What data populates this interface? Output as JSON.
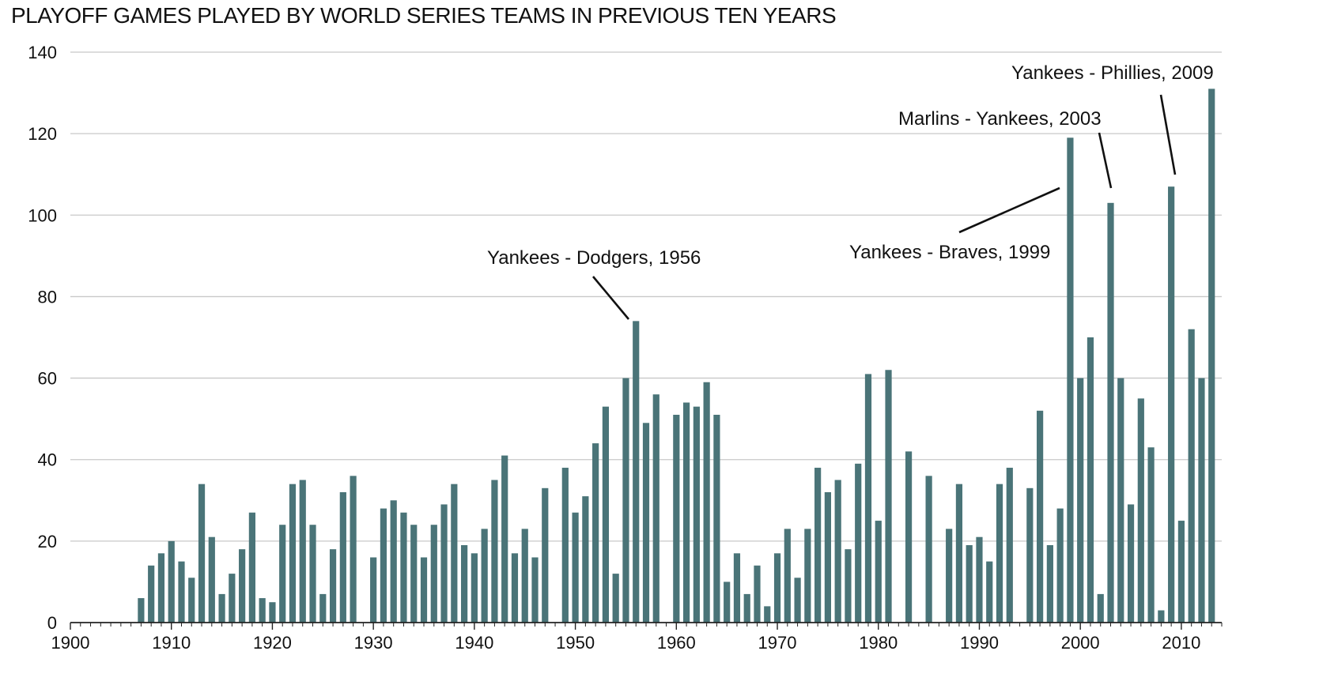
{
  "chart_data": {
    "type": "bar",
    "title": "PLAYOFF GAMES PLAYED BY WORLD SERIES TEAMS IN PREVIOUS TEN YEARS",
    "xlabel": "",
    "ylabel": "",
    "xlim": [
      1900,
      2014
    ],
    "ylim": [
      0,
      140
    ],
    "x_ticks": [
      1900,
      1910,
      1920,
      1930,
      1940,
      1950,
      1960,
      1970,
      1980,
      1990,
      2000,
      2010
    ],
    "y_ticks": [
      0,
      20,
      40,
      60,
      80,
      100,
      120,
      140
    ],
    "grid": "horizontal",
    "bar_color": "#4a7478",
    "x": [
      1907,
      1908,
      1909,
      1910,
      1911,
      1912,
      1913,
      1914,
      1915,
      1916,
      1917,
      1918,
      1919,
      1920,
      1921,
      1922,
      1923,
      1924,
      1925,
      1926,
      1927,
      1928,
      1930,
      1931,
      1932,
      1933,
      1934,
      1935,
      1936,
      1937,
      1938,
      1939,
      1940,
      1941,
      1942,
      1943,
      1944,
      1945,
      1946,
      1947,
      1949,
      1950,
      1951,
      1952,
      1953,
      1954,
      1955,
      1956,
      1957,
      1958,
      1960,
      1961,
      1962,
      1963,
      1964,
      1965,
      1966,
      1967,
      1968,
      1969,
      1970,
      1971,
      1972,
      1973,
      1974,
      1975,
      1976,
      1977,
      1978,
      1979,
      1980,
      1981,
      1983,
      1985,
      1987,
      1988,
      1989,
      1990,
      1991,
      1992,
      1993,
      1995,
      1996,
      1997,
      1998,
      1999,
      2000,
      2001,
      2002,
      2003,
      2004,
      2005,
      2006,
      2007,
      2008,
      2009,
      2010,
      2011,
      2012,
      2013
    ],
    "values": [
      6,
      14,
      17,
      20,
      15,
      11,
      34,
      21,
      7,
      12,
      18,
      27,
      6,
      5,
      24,
      34,
      35,
      24,
      7,
      18,
      32,
      36,
      16,
      28,
      30,
      27,
      24,
      16,
      24,
      29,
      34,
      19,
      17,
      23,
      35,
      41,
      17,
      23,
      16,
      33,
      38,
      27,
      31,
      44,
      53,
      12,
      60,
      74,
      49,
      56,
      51,
      54,
      53,
      59,
      51,
      10,
      17,
      7,
      14,
      4,
      17,
      23,
      11,
      23,
      38,
      32,
      35,
      18,
      39,
      61,
      25,
      62,
      42,
      36,
      23,
      34,
      19,
      21,
      15,
      34,
      38,
      33,
      52,
      19,
      28,
      119,
      60,
      70,
      7,
      103,
      60,
      29,
      55,
      43,
      3,
      107,
      25,
      72,
      60,
      131
    ],
    "annotations": [
      {
        "text": "Yankees - Dodgers, 1956",
        "year": 1956,
        "value": 74
      },
      {
        "text": "Yankees - Braves, 1999",
        "year": 1999,
        "value": 119
      },
      {
        "text": "Marlins - Yankees, 2003",
        "year": 2003,
        "value": 103
      },
      {
        "text": "Yankees - Phillies, 2009",
        "year": 2009,
        "value": 107
      }
    ]
  }
}
